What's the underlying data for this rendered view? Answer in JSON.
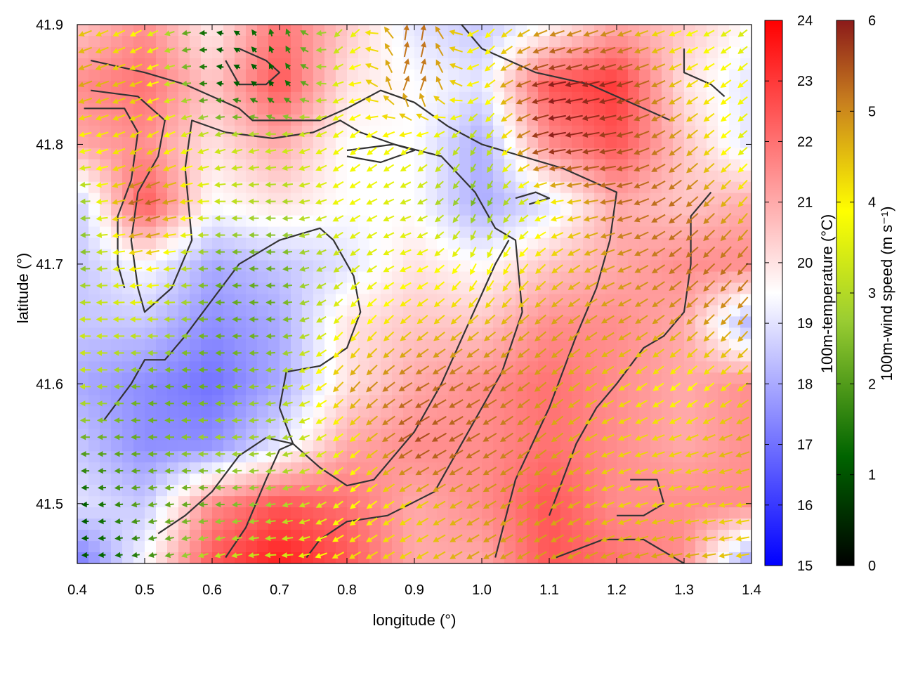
{
  "chart_data": {
    "type": "heatmap",
    "title": "",
    "xlabel": "longitude (°)",
    "ylabel": "latitude (°)",
    "xlim": [
      0.4,
      1.4
    ],
    "ylim": [
      41.45,
      41.9
    ],
    "xticks": [
      "0.4",
      "0.5",
      "0.6",
      "0.7",
      "0.8",
      "0.9",
      "1.0",
      "1.1",
      "1.2",
      "1.3",
      "1.4"
    ],
    "yticks": [
      "41.5",
      "41.6",
      "41.7",
      "41.8",
      "41.9"
    ],
    "grid": false,
    "heatmap": {
      "name": "100m-temperature",
      "colorbar_label": "100m-temperature (°C)",
      "colorbar_ticks": [
        "15",
        "16",
        "17",
        "18",
        "19",
        "20",
        "21",
        "22",
        "23",
        "24"
      ],
      "range": [
        15,
        24
      ],
      "colorscale": [
        "#0000ff",
        "#ffffff",
        "#ff0000"
      ],
      "x": [
        0.4,
        0.5,
        0.6,
        0.7,
        0.8,
        0.9,
        1.0,
        1.1,
        1.2,
        1.3,
        1.4
      ],
      "y": [
        41.9,
        41.85,
        41.8,
        41.75,
        41.7,
        41.65,
        41.6,
        41.55,
        41.5,
        41.45
      ],
      "z": [
        [
          20.5,
          21.5,
          19.8,
          22.0,
          20.5,
          19.0,
          18.5,
          19.5,
          21.0,
          20.5,
          19.5
        ],
        [
          21.5,
          22.0,
          20.5,
          22.5,
          20.0,
          19.5,
          19.0,
          22.5,
          23.0,
          20.0,
          19.0
        ],
        [
          21.0,
          21.5,
          20.0,
          21.0,
          19.5,
          19.5,
          18.0,
          21.5,
          22.5,
          20.5,
          19.0
        ],
        [
          18.5,
          22.5,
          19.5,
          20.0,
          19.5,
          19.5,
          18.0,
          19.0,
          21.0,
          20.5,
          21.0
        ],
        [
          18.5,
          19.5,
          18.0,
          18.5,
          19.0,
          20.0,
          19.5,
          20.5,
          21.0,
          21.5,
          21.5
        ],
        [
          18.5,
          18.5,
          17.5,
          18.0,
          20.0,
          20.5,
          20.5,
          21.5,
          21.5,
          21.0,
          18.0
        ],
        [
          18.0,
          17.5,
          17.0,
          18.0,
          20.0,
          21.0,
          21.5,
          22.0,
          21.5,
          21.0,
          21.5
        ],
        [
          18.5,
          17.5,
          17.5,
          19.0,
          21.0,
          21.5,
          21.5,
          22.0,
          21.5,
          21.0,
          21.5
        ],
        [
          19.0,
          18.5,
          21.5,
          22.5,
          22.0,
          21.0,
          21.5,
          22.5,
          21.5,
          21.5,
          21.5
        ],
        [
          17.0,
          19.5,
          22.5,
          23.5,
          22.5,
          21.0,
          21.0,
          22.5,
          22.0,
          21.5,
          17.5
        ]
      ]
    },
    "vectors": {
      "name": "100m-wind speed",
      "colorbar_label": "100m-wind speed (m s⁻¹)",
      "colorbar_ticks": [
        "0",
        "1",
        "2",
        "3",
        "4",
        "5",
        "6"
      ],
      "range": [
        0,
        6
      ],
      "colorscale": [
        "#000000",
        "#006400",
        "#9acd32",
        "#ffff00",
        "#c87f1e",
        "#8b1a1a"
      ],
      "x": [
        0.4,
        0.5,
        0.6,
        0.7,
        0.8,
        0.9,
        1.0,
        1.1,
        1.2,
        1.3,
        1.4
      ],
      "y": [
        41.9,
        41.85,
        41.8,
        41.75,
        41.7,
        41.65,
        41.6,
        41.55,
        41.5,
        41.45
      ],
      "speed": [
        [
          4.2,
          3.5,
          1.0,
          1.5,
          3.0,
          5.2,
          3.5,
          4.5,
          4.5,
          3.5,
          3.0
        ],
        [
          4.5,
          4.0,
          1.2,
          1.0,
          3.5,
          5.0,
          3.5,
          6.0,
          5.8,
          4.0,
          3.5
        ],
        [
          3.5,
          4.0,
          3.0,
          3.0,
          3.5,
          3.5,
          2.5,
          6.0,
          5.5,
          4.5,
          3.0
        ],
        [
          2.0,
          5.5,
          3.0,
          2.5,
          3.5,
          3.0,
          2.0,
          3.5,
          5.0,
          5.0,
          4.0
        ],
        [
          2.0,
          4.0,
          2.0,
          2.0,
          3.0,
          3.5,
          3.5,
          4.0,
          4.5,
          5.0,
          5.0
        ],
        [
          3.0,
          3.0,
          2.0,
          2.0,
          3.5,
          4.0,
          4.2,
          4.5,
          4.5,
          4.5,
          4.5
        ],
        [
          3.0,
          2.0,
          2.0,
          2.5,
          4.5,
          5.0,
          5.0,
          4.5,
          4.0,
          3.5,
          4.0
        ],
        [
          2.0,
          2.0,
          2.5,
          2.5,
          3.5,
          5.5,
          5.0,
          4.5,
          4.0,
          4.0,
          4.5
        ],
        [
          1.0,
          2.0,
          2.0,
          2.5,
          3.5,
          4.0,
          4.5,
          4.5,
          4.0,
          4.0,
          4.0
        ],
        [
          1.0,
          1.5,
          3.0,
          3.0,
          4.0,
          4.0,
          4.5,
          4.5,
          4.5,
          4.5,
          4.0
        ]
      ],
      "direction_deg": [
        [
          200,
          210,
          180,
          90,
          250,
          60,
          230,
          200,
          200,
          200,
          220
        ],
        [
          200,
          200,
          180,
          120,
          210,
          50,
          220,
          190,
          195,
          210,
          220
        ],
        [
          190,
          210,
          200,
          190,
          220,
          220,
          240,
          190,
          190,
          220,
          220
        ],
        [
          180,
          200,
          180,
          180,
          210,
          200,
          250,
          190,
          190,
          220,
          230
        ],
        [
          180,
          190,
          180,
          180,
          220,
          200,
          250,
          220,
          200,
          220,
          230
        ],
        [
          180,
          180,
          180,
          180,
          230,
          220,
          220,
          220,
          210,
          220,
          230
        ],
        [
          180,
          180,
          180,
          190,
          230,
          210,
          210,
          220,
          210,
          220,
          220
        ],
        [
          180,
          180,
          180,
          190,
          220,
          210,
          210,
          220,
          200,
          200,
          200
        ],
        [
          180,
          190,
          180,
          190,
          220,
          210,
          210,
          210,
          200,
          190,
          190
        ],
        [
          180,
          190,
          200,
          180,
          210,
          210,
          210,
          210,
          200,
          190,
          190
        ]
      ]
    },
    "contours": [
      [
        [
          0.42,
          41.87
        ],
        [
          0.5,
          41.86
        ],
        [
          0.56,
          41.85
        ],
        [
          0.6,
          41.84
        ],
        [
          0.64,
          41.83
        ],
        [
          0.66,
          41.82
        ],
        [
          0.7,
          41.82
        ],
        [
          0.76,
          41.82
        ],
        [
          0.8,
          41.83
        ],
        [
          0.85,
          41.845
        ],
        [
          0.9,
          41.835
        ],
        [
          0.95,
          41.815
        ],
        [
          1.0,
          41.8
        ],
        [
          1.06,
          41.79
        ],
        [
          1.12,
          41.78
        ],
        [
          1.2,
          41.76
        ],
        [
          1.19,
          41.72
        ],
        [
          1.17,
          41.68
        ],
        [
          1.14,
          41.64
        ],
        [
          1.1,
          41.58
        ],
        [
          1.05,
          41.52
        ],
        [
          1.02,
          41.455
        ]
      ],
      [
        [
          0.42,
          41.845
        ],
        [
          0.49,
          41.84
        ],
        [
          0.53,
          41.82
        ],
        [
          0.52,
          41.79
        ],
        [
          0.49,
          41.76
        ],
        [
          0.48,
          41.72
        ],
        [
          0.49,
          41.68
        ],
        [
          0.5,
          41.66
        ],
        [
          0.54,
          41.68
        ],
        [
          0.57,
          41.72
        ],
        [
          0.56,
          41.78
        ],
        [
          0.57,
          41.82
        ],
        [
          0.62,
          41.81
        ],
        [
          0.69,
          41.805
        ],
        [
          0.75,
          41.81
        ],
        [
          0.79,
          41.82
        ],
        [
          0.82,
          41.81
        ],
        [
          0.87,
          41.8
        ],
        [
          0.94,
          41.79
        ],
        [
          0.99,
          41.76
        ],
        [
          1.02,
          41.73
        ],
        [
          1.05,
          41.72
        ],
        [
          1.06,
          41.66
        ],
        [
          1.03,
          41.61
        ],
        [
          0.98,
          41.56
        ],
        [
          0.93,
          41.51
        ],
        [
          0.86,
          41.49
        ],
        [
          0.8,
          41.485
        ],
        [
          0.76,
          41.47
        ],
        [
          0.74,
          41.455
        ]
      ],
      [
        [
          0.41,
          41.83
        ],
        [
          0.47,
          41.83
        ],
        [
          0.49,
          41.81
        ],
        [
          0.48,
          41.77
        ],
        [
          0.46,
          41.74
        ],
        [
          0.46,
          41.7
        ],
        [
          0.47,
          41.68
        ]
      ],
      [
        [
          0.44,
          41.57
        ],
        [
          0.48,
          41.6
        ],
        [
          0.5,
          41.62
        ],
        [
          0.53,
          41.62
        ],
        [
          0.56,
          41.64
        ],
        [
          0.6,
          41.67
        ],
        [
          0.64,
          41.7
        ],
        [
          0.7,
          41.72
        ],
        [
          0.76,
          41.73
        ],
        [
          0.78,
          41.72
        ],
        [
          0.81,
          41.69
        ],
        [
          0.82,
          41.66
        ],
        [
          0.8,
          41.63
        ],
        [
          0.76,
          41.615
        ],
        [
          0.71,
          41.61
        ],
        [
          0.7,
          41.58
        ],
        [
          0.72,
          41.55
        ],
        [
          0.76,
          41.53
        ],
        [
          0.8,
          41.515
        ],
        [
          0.84,
          41.52
        ],
        [
          0.87,
          41.54
        ],
        [
          0.9,
          41.56
        ],
        [
          0.94,
          41.6
        ],
        [
          0.98,
          41.65
        ],
        [
          1.02,
          41.7
        ],
        [
          1.04,
          41.72
        ]
      ],
      [
        [
          1.11,
          41.455
        ],
        [
          1.18,
          41.47
        ],
        [
          1.24,
          41.47
        ],
        [
          1.27,
          41.46
        ],
        [
          1.3,
          41.45
        ]
      ],
      [
        [
          0.62,
          41.455
        ],
        [
          0.65,
          41.48
        ],
        [
          0.68,
          41.52
        ],
        [
          0.7,
          41.545
        ],
        [
          0.72,
          41.55
        ],
        [
          0.68,
          41.555
        ],
        [
          0.64,
          41.54
        ],
        [
          0.6,
          41.51
        ],
        [
          0.56,
          41.49
        ],
        [
          0.52,
          41.475
        ]
      ],
      [
        [
          1.3,
          41.88
        ],
        [
          1.3,
          41.86
        ],
        [
          1.34,
          41.85
        ],
        [
          1.36,
          41.84
        ]
      ],
      [
        [
          1.34,
          41.76
        ],
        [
          1.31,
          41.74
        ],
        [
          1.31,
          41.7
        ],
        [
          1.3,
          41.66
        ],
        [
          1.27,
          41.64
        ],
        [
          1.24,
          41.63
        ],
        [
          1.2,
          41.6
        ],
        [
          1.17,
          41.58
        ],
        [
          1.14,
          41.55
        ],
        [
          1.12,
          41.52
        ],
        [
          1.1,
          41.49
        ]
      ],
      [
        [
          1.22,
          41.52
        ],
        [
          1.26,
          41.52
        ],
        [
          1.27,
          41.5
        ],
        [
          1.24,
          41.49
        ],
        [
          1.2,
          41.49
        ]
      ],
      [
        [
          0.8,
          41.795
        ],
        [
          0.87,
          41.8
        ],
        [
          0.9,
          41.795
        ],
        [
          0.85,
          41.785
        ],
        [
          0.8,
          41.79
        ]
      ],
      [
        [
          0.64,
          41.88
        ],
        [
          0.68,
          41.87
        ],
        [
          0.7,
          41.86
        ],
        [
          0.68,
          41.85
        ],
        [
          0.64,
          41.85
        ],
        [
          0.62,
          41.87
        ]
      ],
      [
        [
          0.97,
          41.9
        ],
        [
          1.0,
          41.88
        ],
        [
          1.04,
          41.87
        ],
        [
          1.08,
          41.86
        ],
        [
          1.12,
          41.855
        ],
        [
          1.16,
          41.85
        ],
        [
          1.2,
          41.84
        ],
        [
          1.24,
          41.83
        ],
        [
          1.28,
          41.82
        ]
      ],
      [
        [
          1.05,
          41.755
        ],
        [
          1.08,
          41.76
        ],
        [
          1.1,
          41.755
        ],
        [
          1.07,
          41.75
        ]
      ]
    ]
  }
}
